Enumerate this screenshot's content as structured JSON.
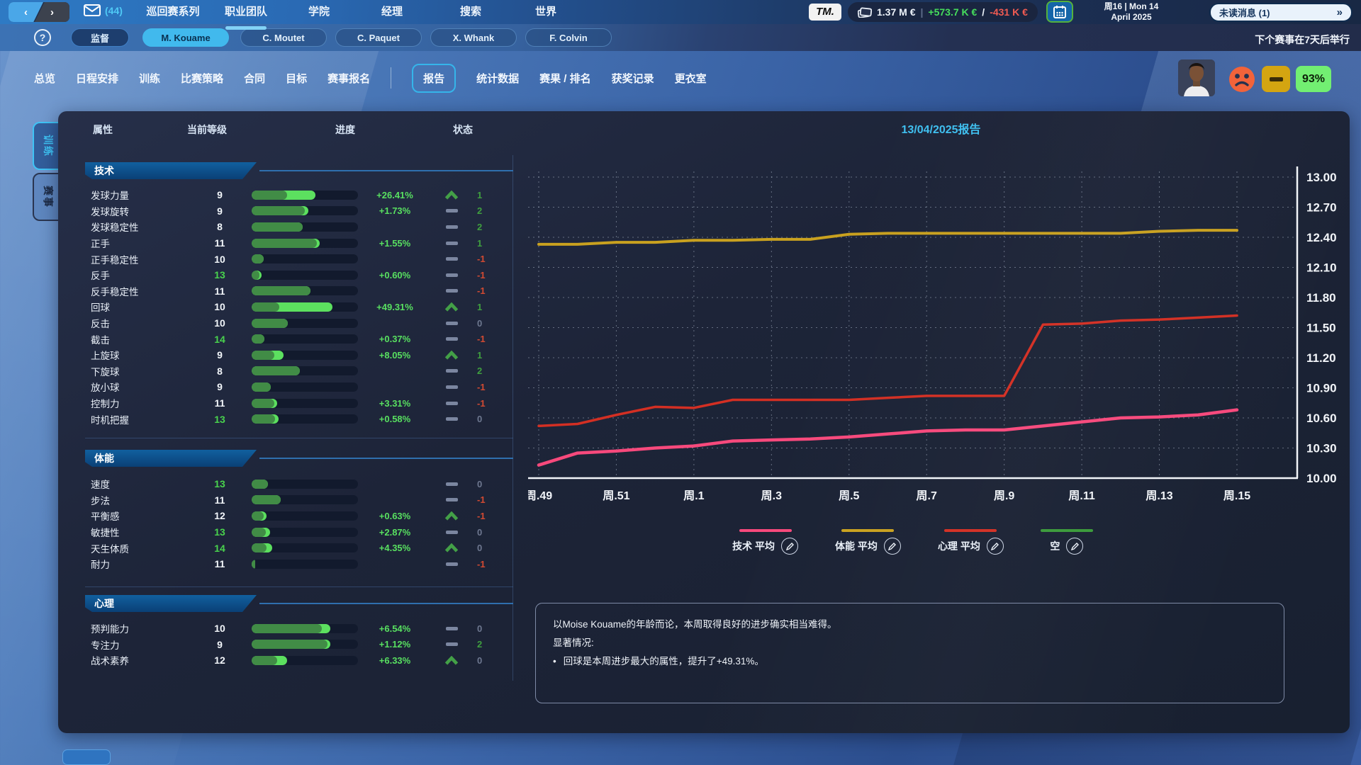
{
  "top_bar": {
    "mail_count": "(44)",
    "nav_items": [
      "巡回赛系列",
      "职业团队",
      "学院",
      "经理",
      "搜索",
      "世界"
    ],
    "active_nav": "职业团队",
    "logo": "TM.",
    "finance": {
      "balance": "1.37 M €",
      "weekly_in": "+573.7 K €",
      "weekly_out": "-431 K €"
    },
    "date_line1": "周16 | Mon 14",
    "date_line2": "April 2025",
    "unread_label": "未读消息 (1)",
    "unread_chevrons": "»"
  },
  "player_bar": {
    "help_glyph": "?",
    "supervisor_tab": "监督",
    "player_tabs": [
      "M. Kouame",
      "C. Moutet",
      "C. Paquet",
      "X. Whank",
      "F. Colvin"
    ],
    "active_player": "M. Kouame",
    "next_event_note": "下个赛事在7天后举行"
  },
  "section_tabs": {
    "items": [
      "总览",
      "日程安排",
      "训练",
      "比赛策略",
      "合同",
      "目标",
      "赛事报名",
      "报告",
      "统计数据",
      "赛果 / 排名",
      "获奖记录",
      "更衣室"
    ],
    "active": "报告",
    "divider_before": "报告",
    "condition_pct": "93%"
  },
  "side_tabs": {
    "items": [
      "训练",
      "赛事"
    ],
    "active": "训练"
  },
  "attributes": {
    "columns": [
      "属性",
      "当前等级",
      "进度",
      "状态"
    ],
    "sections": [
      {
        "title": "技术",
        "rows": [
          {
            "name": "发球力量",
            "value": 9,
            "green": false,
            "bar": [
              33,
              60
            ],
            "pct": "+26.41%",
            "trend": "up",
            "change": "1",
            "cc": "pos"
          },
          {
            "name": "发球旋转",
            "value": 9,
            "green": false,
            "bar": [
              50,
              53
            ],
            "pct": "+1.73%",
            "trend": "flat",
            "change": "2",
            "cc": "pos"
          },
          {
            "name": "发球稳定性",
            "value": 8,
            "green": false,
            "bar": [
              48,
              48
            ],
            "pct": "",
            "trend": "flat",
            "change": "2",
            "cc": "pos"
          },
          {
            "name": "正手",
            "value": 11,
            "green": false,
            "bar": [
              61,
              64
            ],
            "pct": "+1.55%",
            "trend": "flat",
            "change": "1",
            "cc": "pos"
          },
          {
            "name": "正手稳定性",
            "value": 10,
            "green": false,
            "bar": [
              11,
              11
            ],
            "pct": "",
            "trend": "flat",
            "change": "-1",
            "cc": "neg"
          },
          {
            "name": "反手",
            "value": 13,
            "green": true,
            "bar": [
              7,
              9
            ],
            "pct": "+0.60%",
            "trend": "flat",
            "change": "-1",
            "cc": "neg"
          },
          {
            "name": "反手稳定性",
            "value": 11,
            "green": false,
            "bar": [
              55,
              55
            ],
            "pct": "",
            "trend": "flat",
            "change": "-1",
            "cc": "neg"
          },
          {
            "name": "回球",
            "value": 10,
            "green": false,
            "bar": [
              26,
              76
            ],
            "pct": "+49.31%",
            "trend": "up",
            "change": "1",
            "cc": "pos"
          },
          {
            "name": "反击",
            "value": 10,
            "green": false,
            "bar": [
              34,
              34
            ],
            "pct": "",
            "trend": "flat",
            "change": "0",
            "cc": "zero"
          },
          {
            "name": "截击",
            "value": 14,
            "green": true,
            "bar": [
              12,
              12
            ],
            "pct": "+0.37%",
            "trend": "flat",
            "change": "-1",
            "cc": "neg"
          },
          {
            "name": "上旋球",
            "value": 9,
            "green": false,
            "bar": [
              21,
              30
            ],
            "pct": "+8.05%",
            "trend": "up",
            "change": "1",
            "cc": "pos"
          },
          {
            "name": "下旋球",
            "value": 8,
            "green": false,
            "bar": [
              45,
              45
            ],
            "pct": "",
            "trend": "flat",
            "change": "2",
            "cc": "pos"
          },
          {
            "name": "放小球",
            "value": 9,
            "green": false,
            "bar": [
              18,
              18
            ],
            "pct": "",
            "trend": "flat",
            "change": "-1",
            "cc": "neg"
          },
          {
            "name": "控制力",
            "value": 11,
            "green": false,
            "bar": [
              21,
              24
            ],
            "pct": "+3.31%",
            "trend": "flat",
            "change": "-1",
            "cc": "neg"
          },
          {
            "name": "时机把握",
            "value": 13,
            "green": true,
            "bar": [
              22,
              25
            ],
            "pct": "+0.58%",
            "trend": "flat",
            "change": "0",
            "cc": "zero"
          }
        ]
      },
      {
        "title": "体能",
        "rows": [
          {
            "name": "速度",
            "value": 13,
            "green": true,
            "bar": [
              15,
              15
            ],
            "pct": "",
            "trend": "flat",
            "change": "0",
            "cc": "zero"
          },
          {
            "name": "步法",
            "value": 11,
            "green": false,
            "bar": [
              27,
              27
            ],
            "pct": "",
            "trend": "flat",
            "change": "-1",
            "cc": "neg"
          },
          {
            "name": "平衡感",
            "value": 12,
            "green": false,
            "bar": [
              11,
              14
            ],
            "pct": "+0.63%",
            "trend": "up",
            "change": "-1",
            "cc": "neg"
          },
          {
            "name": "敏捷性",
            "value": 13,
            "green": true,
            "bar": [
              13,
              17
            ],
            "pct": "+2.87%",
            "trend": "flat",
            "change": "0",
            "cc": "zero"
          },
          {
            "name": "天生体质",
            "value": 14,
            "green": true,
            "bar": [
              14,
              19
            ],
            "pct": "+4.35%",
            "trend": "up",
            "change": "0",
            "cc": "zero"
          },
          {
            "name": "耐力",
            "value": 11,
            "green": false,
            "bar": [
              3,
              3
            ],
            "pct": "",
            "trend": "flat",
            "change": "-1",
            "cc": "neg"
          }
        ]
      },
      {
        "title": "心理",
        "rows": [
          {
            "name": "预判能力",
            "value": 10,
            "green": false,
            "bar": [
              66,
              74
            ],
            "pct": "+6.54%",
            "trend": "flat",
            "change": "0",
            "cc": "zero"
          },
          {
            "name": "专注力",
            "value": 9,
            "green": false,
            "bar": [
              71,
              74
            ],
            "pct": "+1.12%",
            "trend": "flat",
            "change": "2",
            "cc": "pos"
          },
          {
            "name": "战术素养",
            "value": 12,
            "green": false,
            "bar": [
              24,
              33
            ],
            "pct": "+6.33%",
            "trend": "up",
            "change": "0",
            "cc": "zero"
          }
        ]
      }
    ]
  },
  "report": {
    "title": "13/04/2025报告",
    "comment_line1": "以Moise Kouame的年龄而论，本周取得良好的进步确实相当难得。",
    "comment_line2": "显著情况:",
    "comment_bullet_glyph": "•",
    "comment_bullet": "回球是本周进步最大的属性，提升了+49.31%。"
  },
  "chart_data": {
    "type": "line",
    "title": "13/04/2025报告",
    "x_tick_labels": [
      "周.49",
      "周.51",
      "周.1",
      "周.3",
      "周.5",
      "周.7",
      "周.9",
      "周.11",
      "周.13",
      "周.15"
    ],
    "x_points_per_tick": 2,
    "ylim": [
      10.0,
      13.0
    ],
    "ystep": 0.3,
    "grid": true,
    "legend_position": "bottom",
    "series": [
      {
        "name": "技术 平均",
        "color": "#f7497c",
        "width": 4.5,
        "values": [
          10.13,
          10.25,
          10.27,
          10.3,
          10.32,
          10.37,
          10.38,
          10.39,
          10.41,
          10.44,
          10.47,
          10.48,
          10.48,
          10.52,
          10.56,
          10.6,
          10.61,
          10.63,
          10.68
        ]
      },
      {
        "name": "体能 平均",
        "color": "#c9a11f",
        "width": 4,
        "values": [
          12.33,
          12.33,
          12.35,
          12.35,
          12.37,
          12.37,
          12.38,
          12.38,
          12.43,
          12.44,
          12.44,
          12.44,
          12.44,
          12.44,
          12.44,
          12.44,
          12.46,
          12.47,
          12.47
        ]
      },
      {
        "name": "心理 平均",
        "color": "#d32f23",
        "width": 3.5,
        "values": [
          10.52,
          10.54,
          10.63,
          10.71,
          10.7,
          10.78,
          10.78,
          10.78,
          10.78,
          10.8,
          10.82,
          10.82,
          10.82,
          11.53,
          11.54,
          11.57,
          11.58,
          11.6,
          11.62
        ]
      },
      {
        "name": "空",
        "color": "#3a9a3a",
        "width": 3,
        "values": []
      }
    ]
  },
  "colors": {
    "accent_cyan": "#3fc0f0",
    "bar_base_green": "#418c46",
    "bar_gain_green": "#5ce05f",
    "positive_green": "#3f9f3f",
    "negative_red": "#d24a32",
    "condition_green": "#72ef72",
    "form_yellow": "#d4a511",
    "mood_orange": "#f2633a"
  }
}
